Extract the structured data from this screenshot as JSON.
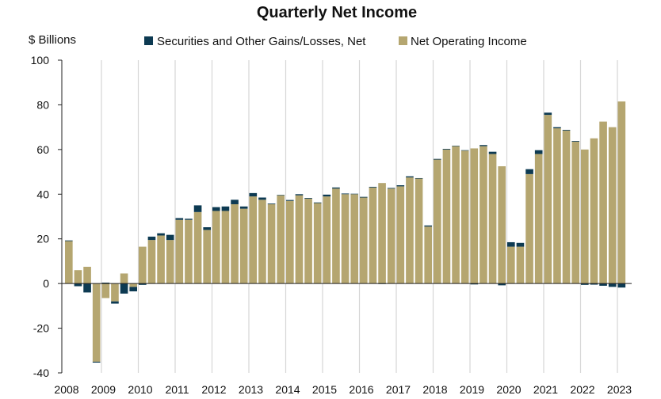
{
  "chart_data": {
    "type": "bar",
    "stacked": true,
    "title": "Quarterly Net Income",
    "ylabel": "$ Billions",
    "xlabel": "",
    "ylim": [
      -40,
      100
    ],
    "yticks": [
      -40,
      -20,
      0,
      20,
      40,
      60,
      80,
      100
    ],
    "grid": "vertical gridlines at year boundaries",
    "legend_position": "top",
    "years": [
      "2008",
      "2009",
      "2010",
      "2011",
      "2012",
      "2013",
      "2014",
      "2015",
      "2016",
      "2017",
      "2018",
      "2019",
      "2020",
      "2021",
      "2022",
      "2023"
    ],
    "quarters_per_year": 4,
    "series": [
      {
        "name": "Securities and Other Gains/Losses, Net",
        "color": "#0d3a52",
        "values": [
          0.3,
          -1.2,
          -4.0,
          -0.4,
          0.4,
          -1.0,
          -4.5,
          -2.0,
          -0.6,
          1.5,
          1.0,
          2.3,
          0.8,
          0.5,
          3.0,
          1.2,
          1.7,
          2.0,
          2.0,
          1.0,
          1.5,
          1.0,
          0.3,
          0.2,
          0.4,
          0.5,
          0.3,
          0.3,
          0.8,
          0.5,
          0.3,
          0.2,
          0.3,
          0.3,
          -0.2,
          0.3,
          0.5,
          0.5,
          0.2,
          0.5,
          0.3,
          0.3,
          0.2,
          0.2,
          -0.4,
          0.5,
          1.0,
          -0.8,
          2.0,
          1.7,
          2.2,
          1.7,
          1.0,
          0.5,
          0.3,
          0.3,
          -0.6,
          -0.5,
          -1.0,
          -1.5,
          -1.8
        ]
      },
      {
        "name": "Net Operating Income",
        "color": "#b5a670",
        "values": [
          19.0,
          6.0,
          7.5,
          -35.0,
          -6.5,
          -8.0,
          4.5,
          -1.5,
          16.5,
          19.5,
          21.5,
          19.5,
          28.5,
          28.5,
          32.0,
          24.0,
          32.5,
          32.5,
          35.5,
          33.5,
          39.0,
          37.5,
          35.5,
          39.5,
          37.0,
          39.5,
          38.0,
          36.0,
          39.0,
          42.5,
          40.0,
          40.0,
          38.5,
          43.0,
          45.0,
          42.5,
          43.5,
          47.5,
          47.0,
          25.5,
          55.5,
          60.0,
          61.5,
          59.5,
          60.5,
          61.5,
          58.0,
          52.5,
          16.5,
          16.5,
          49.0,
          58.0,
          75.5,
          69.5,
          68.5,
          63.5,
          60.0,
          65.0,
          72.5,
          70.0,
          81.5
        ]
      }
    ]
  }
}
